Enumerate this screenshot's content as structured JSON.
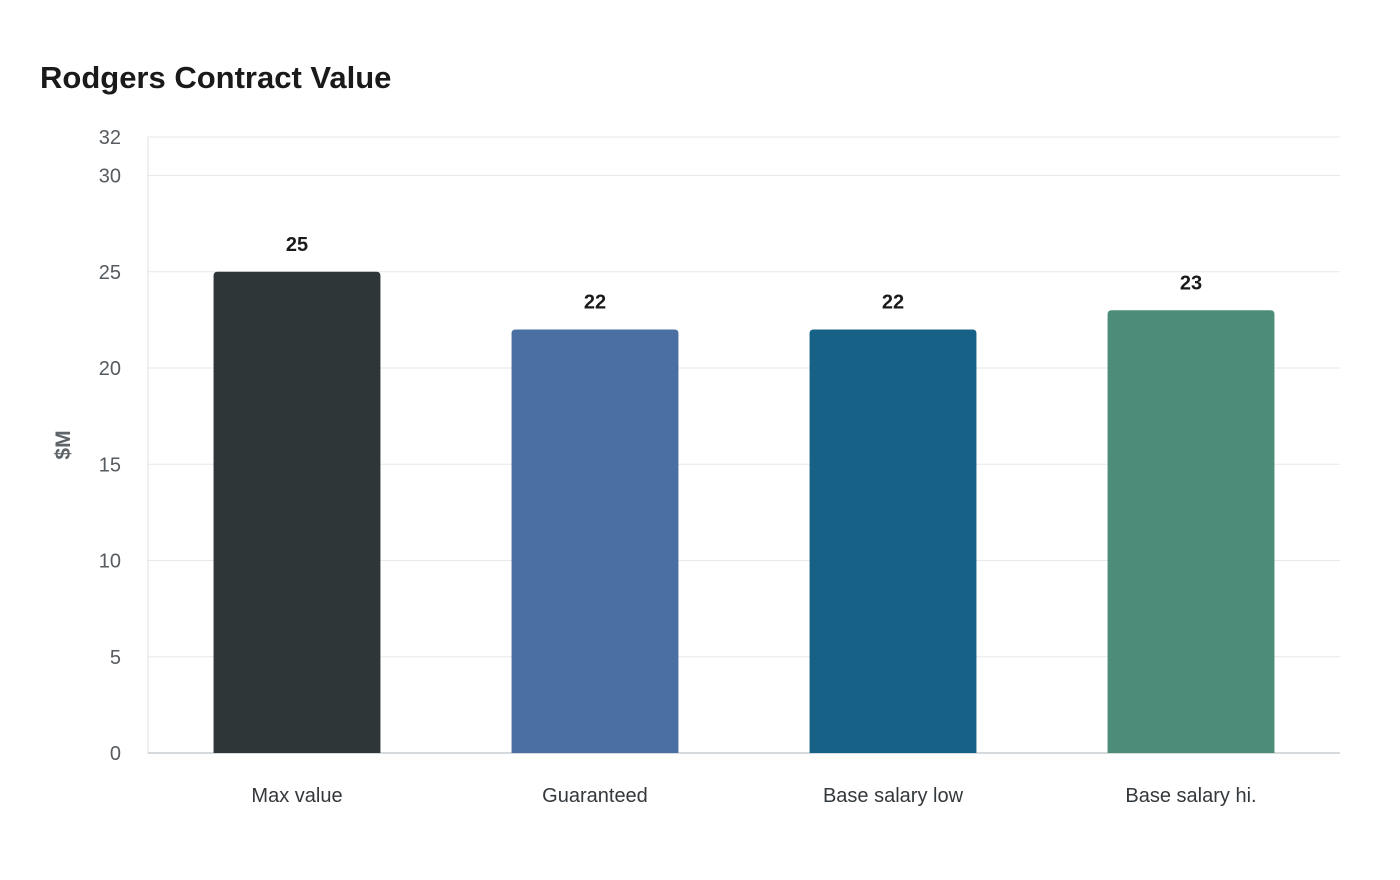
{
  "chart_data": {
    "type": "bar",
    "title": "Rodgers Contract Value",
    "xlabel": "",
    "ylabel": "$M",
    "categories": [
      "Max value",
      "Guaranteed",
      "Base salary low",
      "Base salary hi."
    ],
    "values": [
      25,
      22,
      22,
      23
    ],
    "value_labels": [
      "25",
      "22",
      "22",
      "23"
    ],
    "colors": [
      "#2e3638",
      "#4a6fa3",
      "#186186",
      "#4e8c7a"
    ],
    "ylim": [
      0,
      32
    ],
    "yticks": [
      0,
      5,
      10,
      15,
      20,
      25,
      30,
      32
    ],
    "grid": true,
    "legend": "none"
  }
}
